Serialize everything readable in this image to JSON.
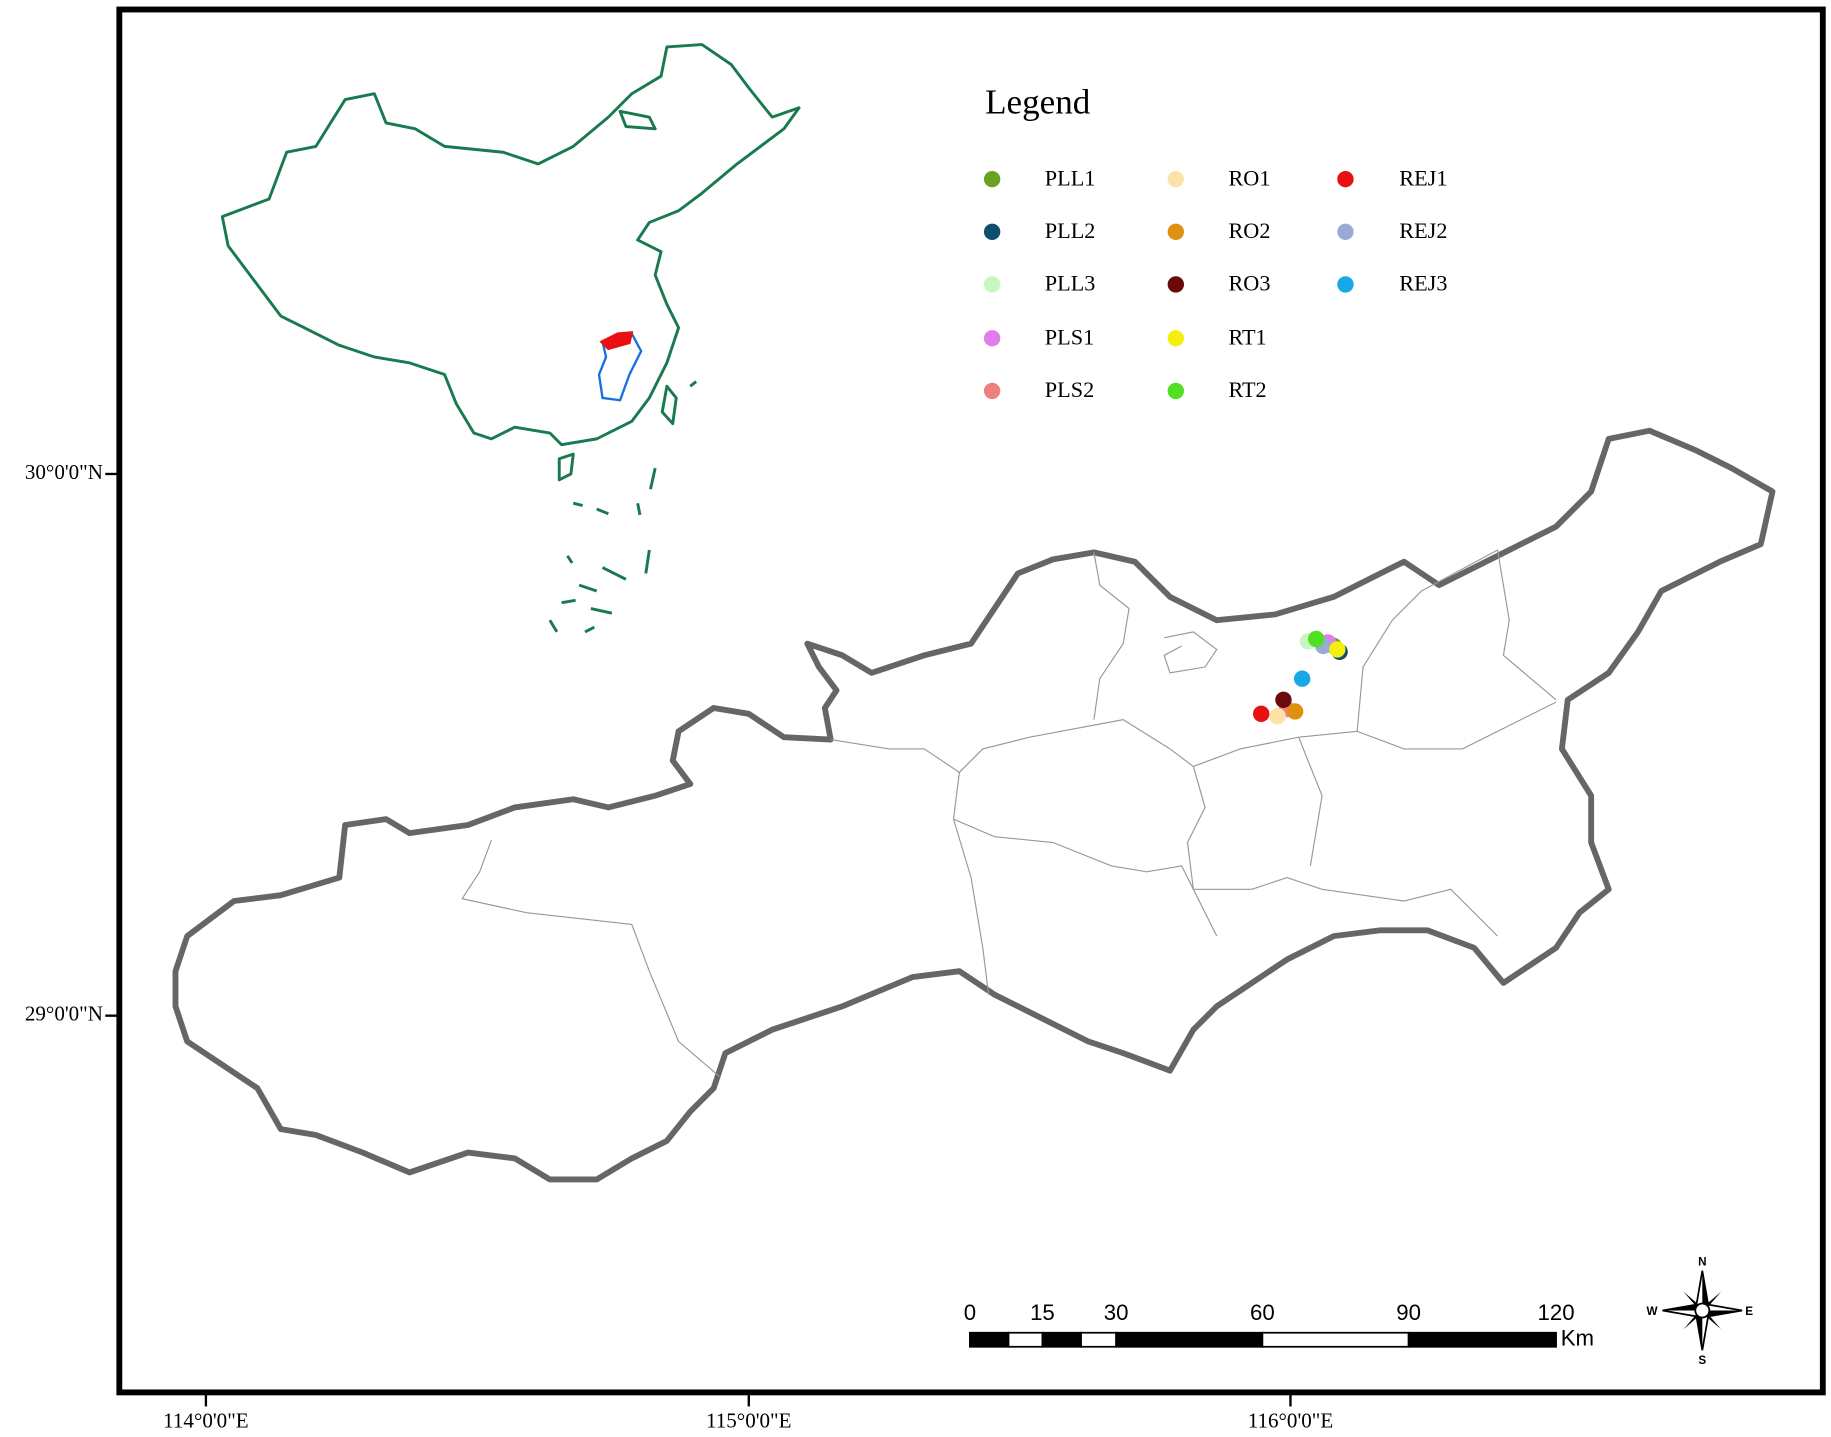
{
  "legend": {
    "title": "Legend",
    "items": [
      {
        "label": "PLL1",
        "color": "#6aa121"
      },
      {
        "label": "PLL2",
        "color": "#0d4f6e"
      },
      {
        "label": "PLL3",
        "color": "#c8f5c0"
      },
      {
        "label": "PLS1",
        "color": "#e07de8"
      },
      {
        "label": "PLS2",
        "color": "#f08080"
      },
      {
        "label": "RO1",
        "color": "#fde2a8"
      },
      {
        "label": "RO2",
        "color": "#e09010"
      },
      {
        "label": "RO3",
        "color": "#6b0a0a"
      },
      {
        "label": "RT1",
        "color": "#f5ef10"
      },
      {
        "label": "RT2",
        "color": "#50e020"
      },
      {
        "label": "REJ1",
        "color": "#e81010"
      },
      {
        "label": "REJ2",
        "color": "#9aaad6"
      },
      {
        "label": "REJ3",
        "color": "#18a8e8"
      }
    ]
  },
  "axes": {
    "lat_labels": [
      "30°0'0\"N",
      "29°0'0\"N"
    ],
    "lon_labels": [
      "114°0'0\"E",
      "115°0'0\"E",
      "116°0'0\"E"
    ]
  },
  "scale_bar": {
    "labels": [
      "0",
      "15",
      "30",
      "60",
      "90",
      "120"
    ],
    "unit": "Km"
  },
  "compass": {
    "n": "N",
    "s": "S",
    "w": "W",
    "e": "E"
  }
}
